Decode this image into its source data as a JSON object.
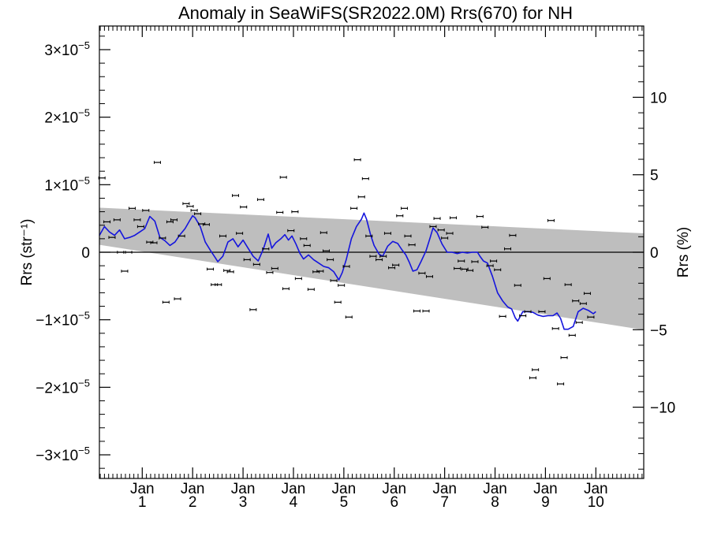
{
  "chart_data": {
    "type": "scatter",
    "title": "Anomaly in SeaWiFS(SR2022.0M) Rrs(670) for NH",
    "ylabel_left": "Rrs (str⁻¹)",
    "ylabel_right": "Rrs (%)",
    "xlabel": "",
    "xlim": [
      0,
      10.8
    ],
    "ylim_left": [
      -3.35e-05,
      3.35e-05
    ],
    "ylim_right": [
      -14.6,
      14.6
    ],
    "x_ticks": [
      {
        "x": 0.85,
        "label1": "Jan",
        "label2": "1"
      },
      {
        "x": 1.85,
        "label1": "Jan",
        "label2": "2"
      },
      {
        "x": 2.85,
        "label1": "Jan",
        "label2": "3"
      },
      {
        "x": 3.85,
        "label1": "Jan",
        "label2": "4"
      },
      {
        "x": 4.85,
        "label1": "Jan",
        "label2": "5"
      },
      {
        "x": 5.85,
        "label1": "Jan",
        "label2": "6"
      },
      {
        "x": 6.85,
        "label1": "Jan",
        "label2": "7"
      },
      {
        "x": 7.85,
        "label1": "Jan",
        "label2": "8"
      },
      {
        "x": 8.85,
        "label1": "Jan",
        "label2": "9"
      },
      {
        "x": 9.85,
        "label1": "Jan",
        "label2": "10"
      }
    ],
    "y_ticks_left": [
      {
        "value": 3e-05,
        "mant": "3",
        "exp": "−5"
      },
      {
        "value": 2e-05,
        "mant": "2",
        "exp": "−5"
      },
      {
        "value": 1e-05,
        "mant": "1",
        "exp": "−5"
      },
      {
        "value": 0,
        "mant": "0",
        "exp": ""
      },
      {
        "value": -1e-05,
        "mant": "−1",
        "exp": "−5"
      },
      {
        "value": -2e-05,
        "mant": "−2",
        "exp": "−5"
      },
      {
        "value": -3e-05,
        "mant": "−3",
        "exp": "−5"
      }
    ],
    "y_ticks_right": [
      {
        "value": 10,
        "label": "10"
      },
      {
        "value": 5,
        "label": "5"
      },
      {
        "value": 0,
        "label": "0"
      },
      {
        "value": -5,
        "label": "−5"
      },
      {
        "value": -10,
        "label": "−10"
      }
    ],
    "band": {
      "upper": [
        [
          0,
          6.6e-06
        ],
        [
          10.8,
          2.8e-06
        ]
      ],
      "lower": [
        [
          10.8,
          -1.15e-05
        ],
        [
          0,
          1.1e-06
        ]
      ]
    },
    "zero_line": true,
    "colors": {
      "band": "#bebebe",
      "smooth_line": "#1515dd",
      "points": "#000000"
    },
    "scatter_points": [
      [
        0.05,
        1.1e-05
      ],
      [
        0.15,
        4.5e-06
      ],
      [
        0.25,
        2.2e-06
      ],
      [
        0.35,
        4.8e-06
      ],
      [
        0.42,
        0.0
      ],
      [
        0.5,
        -2.8e-06
      ],
      [
        0.58,
        0.0
      ],
      [
        0.65,
        6.5e-06
      ],
      [
        0.75,
        4.8e-06
      ],
      [
        0.82,
        3.8e-06
      ],
      [
        0.92,
        6.2e-06
      ],
      [
        1.0,
        1.5e-06
      ],
      [
        1.08,
        1.4e-06
      ],
      [
        1.15,
        1.33e-05
      ],
      [
        1.25,
        2.1e-06
      ],
      [
        1.32,
        -7.4e-06
      ],
      [
        1.4,
        4.5e-06
      ],
      [
        1.48,
        4.8e-06
      ],
      [
        1.55,
        -6.9e-06
      ],
      [
        1.63,
        2.4e-06
      ],
      [
        1.72,
        7.2e-06
      ],
      [
        1.8,
        6.8e-06
      ],
      [
        1.88,
        6.2e-06
      ],
      [
        1.95,
        5.7e-06
      ],
      [
        2.03,
        4.2e-06
      ],
      [
        2.12,
        4.1e-06
      ],
      [
        2.2,
        -2.5e-06
      ],
      [
        2.28,
        -4.8e-06
      ],
      [
        2.36,
        -4.8e-06
      ],
      [
        2.45,
        2.4e-06
      ],
      [
        2.53,
        -2.7e-06
      ],
      [
        2.6,
        -2.9e-06
      ],
      [
        2.7,
        8.4e-06
      ],
      [
        2.78,
        2.8e-06
      ],
      [
        2.86,
        6.7e-06
      ],
      [
        2.93,
        -1.1e-06
      ],
      [
        3.05,
        -8.5e-06
      ],
      [
        3.12,
        -1.8e-06
      ],
      [
        3.2,
        7.8e-06
      ],
      [
        3.3,
        5e-07
      ],
      [
        3.38,
        -3e-06
      ],
      [
        3.48,
        -2.4e-06
      ],
      [
        3.58,
        5.9e-06
      ],
      [
        3.65,
        1.11e-05
      ],
      [
        3.7,
        -5.4e-06
      ],
      [
        3.8,
        3.2e-06
      ],
      [
        3.88,
        6e-06
      ],
      [
        3.95,
        -3.9e-06
      ],
      [
        4.05,
        2e-06
      ],
      [
        4.12,
        1e-06
      ],
      [
        4.2,
        -5.5e-06
      ],
      [
        4.3,
        -2.9e-06
      ],
      [
        4.38,
        -2.8e-06
      ],
      [
        4.45,
        2.9e-06
      ],
      [
        4.5,
        2e-07
      ],
      [
        4.58,
        -1.1e-06
      ],
      [
        4.65,
        -4.2e-06
      ],
      [
        4.73,
        -7.4e-06
      ],
      [
        4.8,
        -4.9e-06
      ],
      [
        4.9,
        -2.1e-06
      ],
      [
        4.95,
        -9.6e-06
      ],
      [
        5.05,
        6.5e-06
      ],
      [
        5.12,
        1.37e-05
      ],
      [
        5.2,
        8.2e-06
      ],
      [
        5.28,
        1.09e-05
      ],
      [
        5.35,
        2.4e-06
      ],
      [
        5.43,
        -6e-07
      ],
      [
        5.55,
        -1.1e-06
      ],
      [
        5.63,
        -6e-07
      ],
      [
        5.72,
        2.8e-06
      ],
      [
        5.8,
        -2.3e-06
      ],
      [
        5.88,
        -1.9e-06
      ],
      [
        5.96,
        5.4e-06
      ],
      [
        6.05,
        6.5e-06
      ],
      [
        6.12,
        2.4e-06
      ],
      [
        6.2,
        1.1e-06
      ],
      [
        6.3,
        -8.7e-06
      ],
      [
        6.4,
        -3.1e-06
      ],
      [
        6.48,
        -8.7e-06
      ],
      [
        6.55,
        -3.6e-06
      ],
      [
        6.62,
        3.8e-06
      ],
      [
        6.7,
        5e-06
      ],
      [
        6.78,
        3.3e-06
      ],
      [
        6.85,
        2.1e-06
      ],
      [
        6.95,
        2.8e-06
      ],
      [
        7.02,
        5.1e-06
      ],
      [
        7.1,
        -2.4e-06
      ],
      [
        7.18,
        -1.3e-06
      ],
      [
        7.25,
        -2.5e-06
      ],
      [
        7.35,
        -2.7e-06
      ],
      [
        7.45,
        -1.4e-06
      ],
      [
        7.55,
        5.3e-06
      ],
      [
        7.65,
        3.7e-06
      ],
      [
        7.75,
        -2e-06
      ],
      [
        7.82,
        -1.3e-06
      ],
      [
        7.9,
        -2.6e-06
      ],
      [
        8.0,
        -9.5e-06
      ],
      [
        8.1,
        5e-07
      ],
      [
        8.2,
        2.5e-06
      ],
      [
        8.3,
        -4.9e-06
      ],
      [
        8.4,
        -9.4e-06
      ],
      [
        8.5,
        -8.8e-06
      ],
      [
        8.6,
        -1.86e-05
      ],
      [
        8.65,
        -1.74e-05
      ],
      [
        8.78,
        -8.8e-06
      ],
      [
        8.88,
        -3.9e-06
      ],
      [
        8.96,
        4.7e-06
      ],
      [
        9.05,
        -1.13e-05
      ],
      [
        9.15,
        -1.95e-05
      ],
      [
        9.22,
        -1.56e-05
      ],
      [
        9.3,
        -4.8e-06
      ],
      [
        9.38,
        -1.23e-05
      ],
      [
        9.45,
        -7.2e-06
      ],
      [
        9.52,
        -1.04e-05
      ],
      [
        9.6,
        -7.6e-06
      ],
      [
        9.68,
        -6.1e-06
      ],
      [
        9.75,
        -9.6e-06
      ]
    ],
    "smooth_line": [
      [
        0.0,
        2.5e-06
      ],
      [
        0.1,
        3.8e-06
      ],
      [
        0.2,
        3e-06
      ],
      [
        0.3,
        2.5e-06
      ],
      [
        0.4,
        3.3e-06
      ],
      [
        0.5,
        2e-06
      ],
      [
        0.6,
        2.2e-06
      ],
      [
        0.7,
        2.5e-06
      ],
      [
        0.8,
        3e-06
      ],
      [
        0.9,
        3.5e-06
      ],
      [
        1.0,
        5.3e-06
      ],
      [
        1.1,
        4.6e-06
      ],
      [
        1.2,
        2.2e-06
      ],
      [
        1.3,
        1.7e-06
      ],
      [
        1.4,
        1e-06
      ],
      [
        1.5,
        1.5e-06
      ],
      [
        1.6,
        2.6e-06
      ],
      [
        1.7,
        3.5e-06
      ],
      [
        1.8,
        4.8e-06
      ],
      [
        1.85,
        5.4e-06
      ],
      [
        1.9,
        5.1e-06
      ],
      [
        2.0,
        3.8e-06
      ],
      [
        2.1,
        1.5e-06
      ],
      [
        2.2,
        3e-07
      ],
      [
        2.3,
        -8e-07
      ],
      [
        2.35,
        -1.4e-06
      ],
      [
        2.45,
        -6e-07
      ],
      [
        2.55,
        1.5e-06
      ],
      [
        2.65,
        2e-06
      ],
      [
        2.75,
        8e-07
      ],
      [
        2.85,
        1.8e-06
      ],
      [
        2.95,
        6e-07
      ],
      [
        3.05,
        -6e-07
      ],
      [
        3.15,
        -1.3e-06
      ],
      [
        3.25,
        4e-07
      ],
      [
        3.35,
        2.7e-06
      ],
      [
        3.42,
        6e-07
      ],
      [
        3.5,
        1.4e-06
      ],
      [
        3.6,
        2e-06
      ],
      [
        3.68,
        2.6e-06
      ],
      [
        3.75,
        1.8e-06
      ],
      [
        3.82,
        2.4e-06
      ],
      [
        3.9,
        1.2e-06
      ],
      [
        3.98,
        -2e-07
      ],
      [
        4.05,
        -1e-06
      ],
      [
        4.15,
        -4e-07
      ],
      [
        4.25,
        -1.1e-06
      ],
      [
        4.35,
        -1.6e-06
      ],
      [
        4.45,
        -2.1e-06
      ],
      [
        4.55,
        -2.3e-06
      ],
      [
        4.65,
        -2.9e-06
      ],
      [
        4.75,
        -4.1e-06
      ],
      [
        4.82,
        -3e-06
      ],
      [
        4.9,
        -1e-06
      ],
      [
        5.0,
        2e-06
      ],
      [
        5.1,
        3.8e-06
      ],
      [
        5.2,
        4.9e-06
      ],
      [
        5.25,
        5.8e-06
      ],
      [
        5.3,
        4.9e-06
      ],
      [
        5.38,
        2.6e-06
      ],
      [
        5.45,
        1e-06
      ],
      [
        5.55,
        -3e-07
      ],
      [
        5.62,
        -6e-07
      ],
      [
        5.72,
        9e-07
      ],
      [
        5.82,
        1.6e-06
      ],
      [
        5.92,
        1.3e-06
      ],
      [
        6.0,
        4e-07
      ],
      [
        6.08,
        -4e-07
      ],
      [
        6.15,
        -1.5e-06
      ],
      [
        6.22,
        -2.8e-06
      ],
      [
        6.3,
        -2.6e-06
      ],
      [
        6.38,
        -1.4e-06
      ],
      [
        6.48,
        2e-07
      ],
      [
        6.56,
        2.1e-06
      ],
      [
        6.62,
        3.6e-06
      ],
      [
        6.7,
        2.9e-06
      ],
      [
        6.8,
        1.2e-06
      ],
      [
        6.9,
        0.0
      ],
      [
        7.0,
        0.0
      ],
      [
        7.1,
        -2e-07
      ],
      [
        7.2,
        0.0
      ],
      [
        7.3,
        -1e-07
      ],
      [
        7.4,
        0.0
      ],
      [
        7.5,
        0.0
      ],
      [
        7.55,
        -6e-07
      ],
      [
        7.62,
        -1.3e-06
      ],
      [
        7.7,
        -1.6e-06
      ],
      [
        7.8,
        -3.6e-06
      ],
      [
        7.9,
        -6e-06
      ],
      [
        8.0,
        -7.2e-06
      ],
      [
        8.1,
        -8.1e-06
      ],
      [
        8.18,
        -8.4e-06
      ],
      [
        8.25,
        -9.7e-06
      ],
      [
        8.3,
        -1.02e-05
      ],
      [
        8.4,
        -8.8e-06
      ],
      [
        8.5,
        -8.8e-06
      ],
      [
        8.6,
        -8.9e-06
      ],
      [
        8.7,
        -9.3e-06
      ],
      [
        8.8,
        -9.5e-06
      ],
      [
        8.9,
        -9.4e-06
      ],
      [
        9.0,
        -9.4e-06
      ],
      [
        9.08,
        -9e-06
      ],
      [
        9.15,
        -9.8e-06
      ],
      [
        9.22,
        -1.14e-05
      ],
      [
        9.3,
        -1.14e-05
      ],
      [
        9.4,
        -1.1e-05
      ],
      [
        9.5,
        -8.8e-06
      ],
      [
        9.6,
        -8.3e-06
      ],
      [
        9.7,
        -8.6e-06
      ],
      [
        9.8,
        -9.1e-06
      ],
      [
        9.85,
        -8.8e-06
      ]
    ]
  }
}
